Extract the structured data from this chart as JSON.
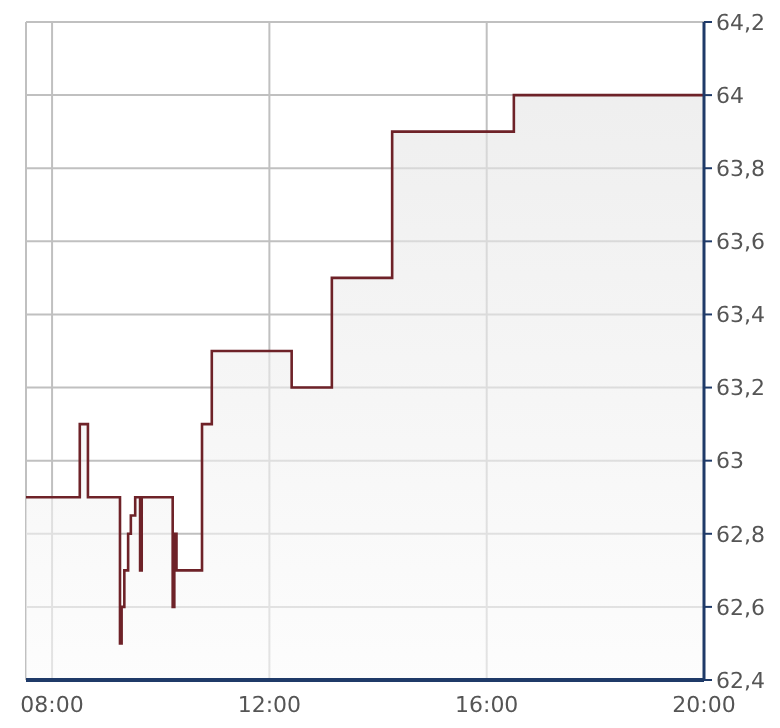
{
  "chart_data": {
    "type": "area",
    "x": [
      7.52,
      8.51,
      8.51,
      8.66,
      8.66,
      9.25,
      9.25,
      9.28,
      9.28,
      9.33,
      9.33,
      9.4,
      9.4,
      9.45,
      9.45,
      9.53,
      9.53,
      9.62,
      9.62,
      9.65,
      9.65,
      10.22,
      10.22,
      10.25,
      10.25,
      10.29,
      10.29,
      10.76,
      10.76,
      10.94,
      10.94,
      12.41,
      12.41,
      13.15,
      13.15,
      14.26,
      14.26,
      16.5,
      16.5,
      20
    ],
    "values": [
      62.9,
      62.9,
      63.1,
      63.1,
      62.9,
      62.9,
      62.5,
      62.5,
      62.6,
      62.6,
      62.7,
      62.7,
      62.8,
      62.8,
      62.85,
      62.85,
      62.9,
      62.9,
      62.7,
      62.7,
      62.9,
      62.9,
      62.6,
      62.6,
      62.8,
      62.8,
      62.7,
      62.7,
      63.1,
      63.1,
      63.3,
      63.3,
      63.2,
      63.2,
      63.5,
      63.5,
      63.9,
      63.9,
      64,
      64
    ],
    "color": "#6e2228",
    "xlim": [
      7.52,
      20
    ],
    "xticks": [
      {
        "value": 8,
        "label": "08:00"
      },
      {
        "value": 12,
        "label": "12:00"
      },
      {
        "value": 16,
        "label": "16:00"
      },
      {
        "value": 20,
        "label": "20:00"
      }
    ],
    "ylim": [
      62.4,
      64.2
    ],
    "yticks": [
      {
        "value": 62.4,
        "label": "62,4"
      },
      {
        "value": 62.6,
        "label": "62,6"
      },
      {
        "value": 62.8,
        "label": "62,8"
      },
      63,
      {
        "value": 63.2,
        "label": "63,2"
      },
      {
        "value": 63.4,
        "label": "63,4"
      },
      {
        "value": 63.6,
        "label": "63,6"
      },
      {
        "value": 63.8,
        "label": "63,8"
      },
      64,
      {
        "value": 64.2,
        "label": "64,2"
      }
    ],
    "grid": true
  }
}
